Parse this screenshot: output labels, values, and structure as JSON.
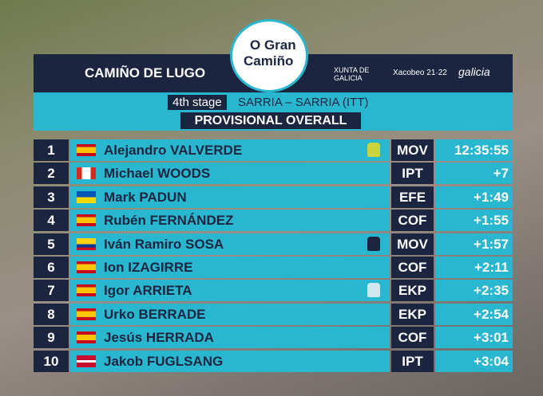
{
  "header": {
    "title": "CAMIÑO DE LUGO",
    "logo_top": "O Gran",
    "logo_bottom": "Camiño",
    "sponsors": [
      "XUNTA DE GALICIA",
      "Xacobeo 21·22",
      "galicia"
    ]
  },
  "stage": {
    "number": "4th stage",
    "route": "SARRIA – SARRIA (ITT)"
  },
  "subtitle": "PROVISIONAL OVERALL",
  "table": {
    "rows": [
      [
        1,
        "Alejandro VALVERDE",
        "MOV",
        "12:35:55"
      ],
      [
        2,
        "Michael WOODS",
        "IPT",
        "+7"
      ],
      [
        3,
        "Mark PADUN",
        "EFE",
        "+1:49"
      ],
      [
        4,
        "Rubén FERNÁNDEZ",
        "COF",
        "+1:55"
      ],
      [
        5,
        "Iván Ramiro SOSA",
        "MOV",
        "+1:57"
      ],
      [
        6,
        "Ion IZAGIRRE",
        "COF",
        "+2:11"
      ],
      [
        7,
        "Igor ARRIETA",
        "EKP",
        "+2:35"
      ],
      [
        8,
        "Urko BERRADE",
        "EKP",
        "+2:54"
      ],
      [
        9,
        "Jesús HERRADA",
        "COF",
        "+3:01"
      ],
      [
        10,
        "Jakob FUGLSANG",
        "IPT",
        "+3:04"
      ]
    ]
  }
}
